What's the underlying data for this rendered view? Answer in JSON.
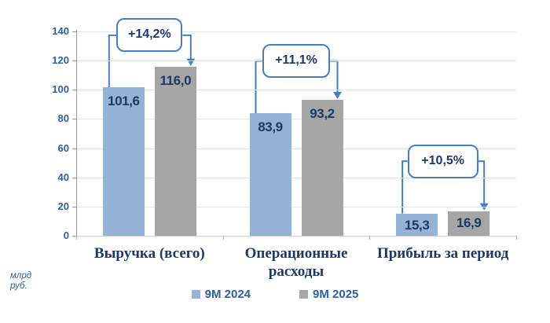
{
  "chart_data": {
    "type": "bar",
    "categories": [
      "Выручка (всего)",
      "Операционные расходы",
      "Прибыль за период"
    ],
    "series": [
      {
        "name": "9M 2024",
        "color": "#95b3d7",
        "values": [
          101.6,
          83.9,
          15.3
        ],
        "labels": [
          "101,6",
          "83,9",
          "15,3"
        ]
      },
      {
        "name": "9M 2025",
        "color": "#a6a6a6",
        "values": [
          116.0,
          93.2,
          16.9
        ],
        "labels": [
          "116,0",
          "93,2",
          "16,9"
        ]
      }
    ],
    "change_labels": [
      "+14,2%",
      "+11,1%",
      "+10,5%"
    ],
    "y_ticks": [
      140,
      120,
      100,
      80,
      60,
      40,
      20,
      0
    ],
    "ylim": [
      0,
      140
    ],
    "unit_label": "млрд руб.",
    "grid": true,
    "legend_position": "bottom"
  },
  "colors": {
    "series_2024": "#95b3d7",
    "series_2025": "#a6a6a6",
    "value_label": "#1f3864",
    "category_label": "#1f3864",
    "axis_label": "#2e5f9e",
    "legend_label": "#2e5f9e",
    "connector": "#4a7ebb",
    "gridline": "#dfe8f3",
    "background": "#ffffff"
  }
}
